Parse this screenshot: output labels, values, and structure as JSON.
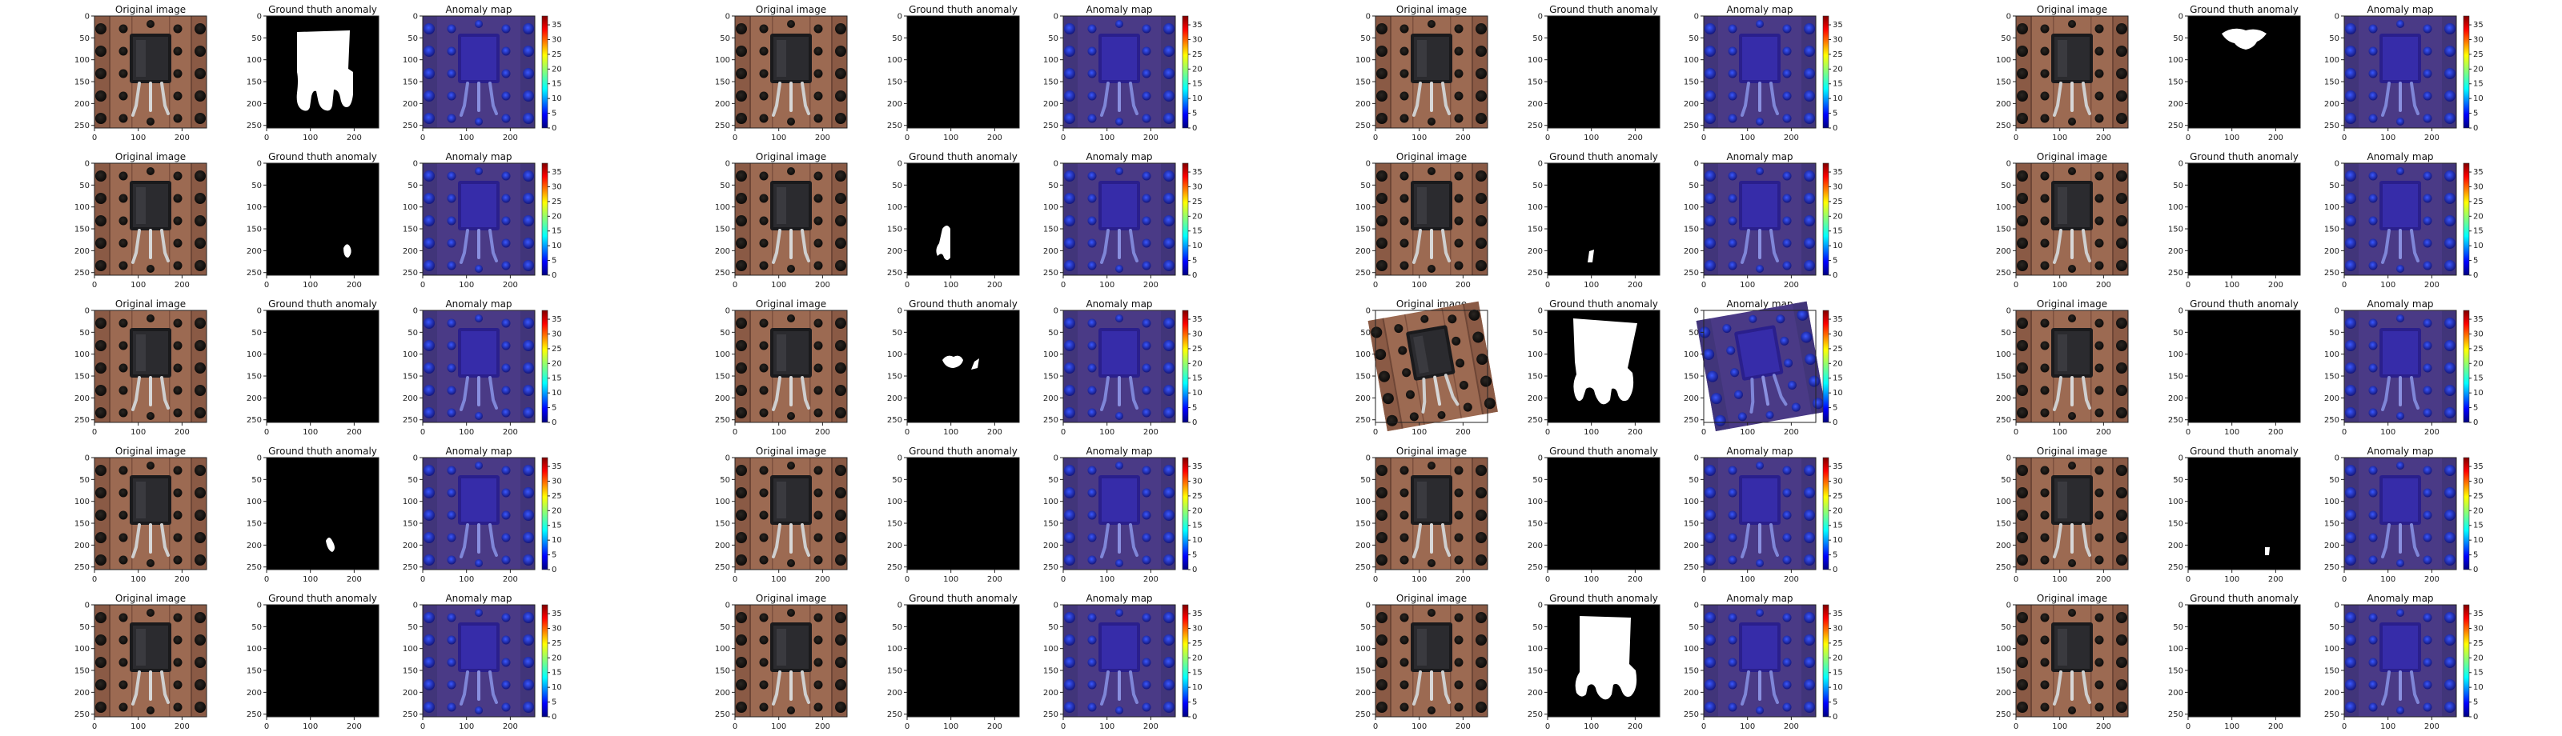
{
  "chart_data": {
    "type": "image-grid",
    "title": "",
    "panel_titles": {
      "original": "Original image",
      "ground_truth": "Ground thuth anomaly",
      "anomaly_map": "Anomaly map"
    },
    "axis": {
      "xlim": [
        0,
        256
      ],
      "ylim": [
        0,
        256
      ],
      "x_ticks": [
        "0",
        "100",
        "200"
      ],
      "x_tick_values": [
        0,
        100,
        200
      ],
      "y_ticks": [
        "0",
        "50",
        "100",
        "150",
        "200",
        "250"
      ],
      "y_tick_values": [
        0,
        50,
        100,
        150,
        200,
        250
      ]
    },
    "colorbar": {
      "colormap": "jet",
      "range": [
        0,
        38
      ],
      "ticks": [
        "0",
        "5",
        "10",
        "15",
        "20",
        "25",
        "30",
        "35"
      ],
      "tick_values": [
        0,
        5,
        10,
        15,
        20,
        25,
        30,
        35
      ]
    },
    "rows": 5,
    "groups": 4,
    "samples": [
      {
        "row": 0,
        "group": 0,
        "anomaly_mask": "large-body-with-legs",
        "rotated": false
      },
      {
        "row": 0,
        "group": 1,
        "anomaly_mask": "none",
        "rotated": false
      },
      {
        "row": 0,
        "group": 2,
        "anomaly_mask": "none",
        "rotated": false
      },
      {
        "row": 0,
        "group": 3,
        "anomaly_mask": "small-top-blob",
        "rotated": false
      },
      {
        "row": 1,
        "group": 0,
        "anomaly_mask": "small-lower-blob",
        "rotated": false
      },
      {
        "row": 1,
        "group": 1,
        "anomaly_mask": "lead-left",
        "rotated": false
      },
      {
        "row": 1,
        "group": 2,
        "anomaly_mask": "tiny-lead-left",
        "rotated": false
      },
      {
        "row": 1,
        "group": 3,
        "anomaly_mask": "none",
        "rotated": false
      },
      {
        "row": 2,
        "group": 0,
        "anomaly_mask": "none",
        "rotated": false
      },
      {
        "row": 2,
        "group": 1,
        "anomaly_mask": "center-blobs",
        "rotated": false
      },
      {
        "row": 2,
        "group": 2,
        "anomaly_mask": "large-rotated-body",
        "rotated": true
      },
      {
        "row": 2,
        "group": 3,
        "anomaly_mask": "none",
        "rotated": false
      },
      {
        "row": 3,
        "group": 0,
        "anomaly_mask": "small-lower-blob-2",
        "rotated": false
      },
      {
        "row": 3,
        "group": 1,
        "anomaly_mask": "none",
        "rotated": false
      },
      {
        "row": 3,
        "group": 2,
        "anomaly_mask": "none",
        "rotated": false
      },
      {
        "row": 3,
        "group": 3,
        "anomaly_mask": "tiny-lower-right",
        "rotated": false
      },
      {
        "row": 4,
        "group": 0,
        "anomaly_mask": "none",
        "rotated": false
      },
      {
        "row": 4,
        "group": 1,
        "anomaly_mask": "none",
        "rotated": false
      },
      {
        "row": 4,
        "group": 2,
        "anomaly_mask": "large-body-with-legs-2",
        "rotated": false
      },
      {
        "row": 4,
        "group": 3,
        "anomaly_mask": "none",
        "rotated": false
      }
    ]
  }
}
